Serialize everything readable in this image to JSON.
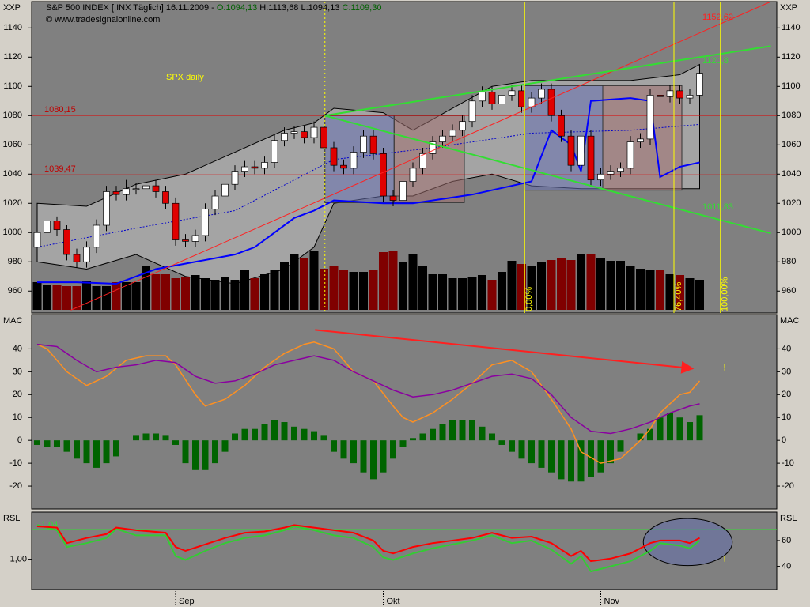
{
  "header": {
    "symbol": "S&P 500 INDEX [.INX  Täglich] 16.11.2009 -",
    "open": "O:1094,13",
    "high": "H:1113,68",
    "low": "L:1094,13",
    "close": "C:1109,30",
    "source": "© www.tradesignalonline.com"
  },
  "chart_data": [
    {
      "type": "candlestick",
      "axis_label": "XXP",
      "annotation": "SPX daily",
      "categories": [
        null,
        null,
        null,
        null,
        null,
        null,
        null,
        null,
        null,
        null,
        null,
        null,
        null,
        null,
        "Sep",
        null,
        null,
        null,
        null,
        null,
        null,
        null,
        null,
        null,
        null,
        null,
        null,
        null,
        null,
        null,
        null,
        null,
        null,
        null,
        null,
        "Okt",
        null,
        null,
        null,
        null,
        null,
        null,
        null,
        null,
        null,
        null,
        null,
        null,
        null,
        null,
        null,
        null,
        null,
        null,
        null,
        null,
        null,
        "Nov",
        null,
        null,
        null,
        null,
        null,
        null,
        null,
        null,
        null,
        null
      ],
      "open": [
        990,
        1000,
        1008,
        1002,
        985,
        980,
        990,
        1005,
        1028,
        1026,
        1030,
        1030,
        1032,
        1028,
        1020,
        995,
        994,
        998,
        1016,
        1025,
        1033,
        1042,
        1045,
        1044,
        1048,
        1063,
        1068,
        1069,
        1065,
        1072,
        1058,
        1046,
        1044,
        1055,
        1066,
        1054,
        1025,
        1022,
        1035,
        1044,
        1054,
        1062,
        1066,
        1070,
        1076,
        1090,
        1096,
        1088,
        1094,
        1097,
        1086,
        1092,
        1098,
        1080,
        1066,
        1046,
        1066,
        1036,
        1040,
        1042,
        1044,
        1062,
        1064,
        1094,
        1093,
        1097,
        1092,
        1094
      ],
      "high": [
        1004,
        1012,
        1011,
        1005,
        989,
        994,
        1009,
        1032,
        1032,
        1036,
        1034,
        1036,
        1036,
        1032,
        1024,
        999,
        1002,
        1020,
        1029,
        1037,
        1046,
        1049,
        1049,
        1052,
        1067,
        1072,
        1073,
        1073,
        1076,
        1076,
        1062,
        1050,
        1059,
        1070,
        1070,
        1058,
        1029,
        1039,
        1048,
        1058,
        1066,
        1070,
        1074,
        1080,
        1094,
        1100,
        1100,
        1098,
        1101,
        1101,
        1096,
        1102,
        1102,
        1084,
        1070,
        1070,
        1070,
        1044,
        1046,
        1048,
        1066,
        1068,
        1098,
        1097,
        1101,
        1101,
        1098,
        1113
      ],
      "low": [
        986,
        996,
        998,
        981,
        976,
        976,
        986,
        1001,
        1022,
        1022,
        1026,
        1026,
        1024,
        1016,
        991,
        990,
        990,
        994,
        1012,
        1021,
        1029,
        1038,
        1040,
        1040,
        1044,
        1059,
        1064,
        1061,
        1061,
        1054,
        1042,
        1040,
        1040,
        1051,
        1050,
        1021,
        1018,
        1018,
        1031,
        1040,
        1050,
        1058,
        1062,
        1066,
        1072,
        1086,
        1084,
        1084,
        1090,
        1082,
        1082,
        1088,
        1076,
        1062,
        1042,
        1042,
        1032,
        1032,
        1036,
        1038,
        1040,
        1058,
        1060,
        1089,
        1089,
        1088,
        1088,
        1094
      ],
      "close": [
        1000,
        1008,
        1002,
        985,
        980,
        990,
        1005,
        1028,
        1026,
        1030,
        1030,
        1032,
        1028,
        1020,
        995,
        994,
        998,
        1016,
        1025,
        1033,
        1042,
        1045,
        1044,
        1048,
        1063,
        1068,
        1069,
        1065,
        1072,
        1058,
        1046,
        1044,
        1055,
        1066,
        1054,
        1025,
        1022,
        1035,
        1044,
        1054,
        1062,
        1066,
        1070,
        1076,
        1090,
        1096,
        1088,
        1094,
        1097,
        1086,
        1092,
        1098,
        1080,
        1066,
        1046,
        1066,
        1036,
        1040,
        1042,
        1044,
        1062,
        1064,
        1094,
        1093,
        1097,
        1092,
        1094,
        1109
      ],
      "volume": [
        35,
        32,
        32,
        30,
        30,
        36,
        30,
        30,
        35,
        35,
        35,
        55,
        45,
        45,
        40,
        42,
        44,
        40,
        38,
        42,
        38,
        50,
        40,
        45,
        50,
        60,
        70,
        65,
        75,
        52,
        55,
        50,
        48,
        48,
        50,
        73,
        75,
        60,
        70,
        55,
        45,
        45,
        40,
        40,
        42,
        44,
        38,
        48,
        62,
        58,
        55,
        60,
        63,
        65,
        63,
        70,
        70,
        65,
        62,
        62,
        55,
        52,
        50,
        50,
        45,
        44,
        40,
        38
      ],
      "volume_lim": [
        0,
        100
      ],
      "ylim": [
        945,
        1158
      ],
      "yticks": [
        960,
        980,
        1000,
        1020,
        1040,
        1060,
        1080,
        1100,
        1120,
        1140
      ],
      "bands": {
        "x": [
          0,
          5,
          10,
          15,
          20,
          25,
          28,
          30,
          35,
          38,
          42,
          46,
          50,
          55,
          60,
          65,
          67
        ],
        "upper": [
          1020,
          1018,
          1033,
          1040,
          1055,
          1070,
          1075,
          1085,
          1082,
          1070,
          1085,
          1100,
          1104,
          1104,
          1104,
          1108,
          1115
        ],
        "lower": [
          980,
          975,
          985,
          970,
          965,
          975,
          990,
          1020,
          1025,
          1025,
          1035,
          1040,
          1032,
          1030,
          1030,
          1030,
          1030
        ]
      },
      "middle": {
        "x": [
          0,
          10,
          20,
          30,
          40,
          50,
          60,
          67
        ],
        "y": [
          990,
          1003,
          1015,
          1050,
          1058,
          1068,
          1070,
          1074
        ]
      },
      "blue": {
        "x": [
          0,
          4,
          8,
          12,
          16,
          20,
          22,
          24,
          26,
          28,
          30,
          35,
          38,
          44,
          50,
          52,
          54,
          55,
          56,
          60,
          62,
          63,
          65,
          67
        ],
        "y": [
          966,
          966,
          965,
          975,
          980,
          985,
          990,
          1000,
          1010,
          1015,
          1022,
          1020,
          1020,
          1026,
          1035,
          1070,
          1060,
          1042,
          1090,
          1092,
          1090,
          1038,
          1045,
          1048
        ]
      },
      "hlines": [
        {
          "value": 1080.15,
          "label": "1080,15"
        },
        {
          "value": 1039.47,
          "label": "1039,47"
        }
      ],
      "trendlines": [
        {
          "color": "#ff2020",
          "x": [
            3.4,
            74.2
          ],
          "y": [
            947,
            1158
          ],
          "label": "1152,62"
        },
        {
          "color": "#33dd33",
          "x": [
            29.1,
            74.2
          ],
          "y": [
            1080,
            1127.6
          ],
          "label": "1120,8"
        },
        {
          "color": "#33dd33",
          "x": [
            29.1,
            74.2
          ],
          "y": [
            1080,
            999.5
          ],
          "label": "1011,83"
        }
      ],
      "fib": [
        {
          "x": 49.3,
          "label": "0,00%"
        },
        {
          "x": 64.4,
          "label": "76,40%"
        },
        {
          "x": 69.1,
          "label": "100,00%"
        }
      ],
      "vline": 29.1,
      "boxes": [
        {
          "x": [
            29.1,
            36.1
          ],
          "y": [
            1020.5,
            1080
          ],
          "color": "#6670b0"
        },
        {
          "x": [
            36.1,
            43.2
          ],
          "y": [
            1020.5,
            1080
          ],
          "color": "#a07070"
        },
        {
          "x": [
            49.3,
            57.2
          ],
          "y": [
            1029,
            1100.5
          ],
          "color": "#6670b0"
        },
        {
          "x": [
            57.2,
            65.2
          ],
          "y": [
            1029,
            1100.5
          ],
          "color": "#a07070"
        }
      ]
    },
    {
      "type": "macd",
      "axis_label": "MAC",
      "ylim": [
        -30,
        55
      ],
      "yticks": [
        -20,
        -10,
        0,
        10,
        20,
        30,
        40
      ],
      "lines": [
        {
          "color": "#ff9020",
          "x": [
            0,
            1,
            3,
            5,
            7,
            9,
            11,
            13,
            14,
            16,
            17,
            19,
            21,
            23,
            25,
            27,
            28,
            30,
            32,
            34,
            36,
            37,
            38,
            40,
            42,
            44,
            46,
            48,
            50,
            52,
            54,
            55,
            57,
            59,
            61,
            62,
            63,
            65,
            66,
            67
          ],
          "values": [
            42,
            40,
            30,
            24,
            28,
            35,
            37,
            37,
            33,
            20,
            15,
            18,
            24,
            32,
            38,
            42,
            43,
            40,
            30,
            26,
            15,
            10,
            8,
            12,
            18,
            25,
            33,
            35,
            30,
            18,
            5,
            -5,
            -10,
            -8,
            0,
            5,
            12,
            20,
            21,
            26
          ]
        },
        {
          "color": "#8a00a0",
          "x": [
            0,
            2,
            4,
            6,
            8,
            10,
            12,
            14,
            16,
            18,
            20,
            22,
            24,
            26,
            28,
            30,
            32,
            34,
            36,
            38,
            40,
            42,
            44,
            46,
            48,
            50,
            52,
            54,
            56,
            58,
            60,
            62,
            64,
            66,
            67
          ],
          "values": [
            42,
            41,
            35,
            30,
            32,
            33,
            35,
            34,
            28,
            25,
            26,
            29,
            33,
            35,
            37,
            35,
            30,
            26,
            22,
            19,
            20,
            22,
            25,
            28,
            29,
            27,
            20,
            10,
            4,
            3,
            5,
            8,
            12,
            15,
            16
          ]
        }
      ],
      "histogram": {
        "color": "#006400",
        "values": [
          -2,
          -3,
          -3,
          -5,
          -8,
          -10,
          -12,
          -10,
          -7,
          0,
          2,
          3,
          3,
          2,
          -2,
          -10,
          -13,
          -13,
          -10,
          -5,
          3,
          5,
          5,
          7,
          9,
          8,
          6,
          5,
          4,
          2,
          -5,
          -8,
          -10,
          -14,
          -17,
          -14,
          -8,
          -3,
          1,
          3,
          5,
          7,
          9,
          9,
          9,
          6,
          3,
          -2,
          -5,
          -8,
          -10,
          -12,
          -14,
          -17,
          -18,
          -18,
          -16,
          -14,
          -10,
          -5,
          0,
          3,
          5,
          10,
          12,
          10,
          8,
          11
        ]
      },
      "arrow": {
        "x": [
          28.1,
          66.3
        ],
        "y": [
          48.3,
          31.4
        ]
      },
      "marker": {
        "x": 69.4,
        "y": 31.7,
        "label": "!"
      }
    },
    {
      "type": "rsi",
      "axis_label": "RSL",
      "ylim": [
        22,
        82
      ],
      "yticks": [
        40,
        60
      ],
      "left_ticks": [
        {
          "value": 45.5,
          "label": "1,00"
        }
      ],
      "level": {
        "value": 68.5,
        "label": "1,04"
      },
      "lines": [
        {
          "color": "#33cc33",
          "x": [
            0,
            2,
            3,
            5,
            7,
            8,
            10,
            13,
            14,
            15,
            17,
            19,
            21,
            23,
            25,
            26,
            28,
            30,
            32,
            34,
            35,
            36,
            38,
            40,
            42,
            44,
            46,
            48,
            50,
            52,
            54,
            55,
            56,
            58,
            60,
            62,
            63,
            65,
            66,
            67
          ],
          "values": [
            72,
            68,
            55,
            58,
            62,
            69,
            64,
            64,
            48,
            45,
            52,
            58,
            62,
            64,
            68,
            71,
            68,
            64,
            62,
            55,
            47,
            45,
            50,
            54,
            57,
            60,
            64,
            58,
            60,
            53,
            42,
            48,
            36,
            40,
            44,
            52,
            58,
            56,
            54,
            60
          ]
        },
        {
          "color": "#ff0000",
          "x": [
            0,
            2,
            3,
            5,
            7,
            8,
            10,
            13,
            14,
            15,
            17,
            19,
            21,
            23,
            25,
            26,
            28,
            30,
            32,
            34,
            35,
            36,
            38,
            40,
            42,
            44,
            46,
            48,
            50,
            52,
            54,
            55,
            56,
            58,
            60,
            62,
            63,
            65,
            66,
            67
          ],
          "values": [
            71,
            70,
            58,
            62,
            65,
            70,
            68,
            66,
            55,
            52,
            57,
            62,
            66,
            67,
            70,
            72,
            70,
            68,
            66,
            60,
            52,
            50,
            55,
            58,
            60,
            62,
            66,
            62,
            63,
            58,
            48,
            52,
            44,
            46,
            50,
            58,
            60,
            60,
            58,
            62
          ]
        }
      ],
      "ellipse": {
        "x": [
          61.3,
          70.3
        ],
        "y": [
          40.6,
          77
        ]
      },
      "marker": {
        "x": 69.4,
        "y": 45.5,
        "label": "!"
      }
    }
  ]
}
